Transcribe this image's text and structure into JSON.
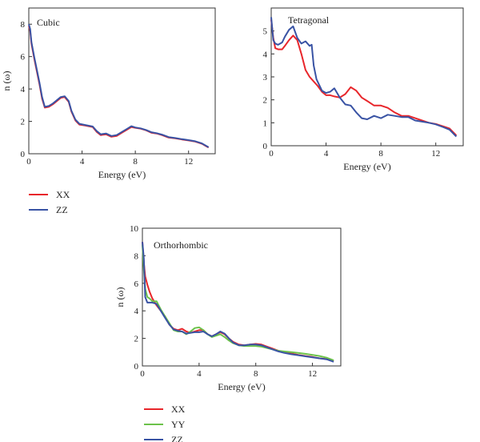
{
  "colors": {
    "XX": "#e8262b",
    "YY": "#6cc24a",
    "ZZ": "#3953a4"
  },
  "chart_data": [
    {
      "type": "line",
      "title": "Cubic",
      "xlabel": "Energy (eV)",
      "ylabel": "n (ω)",
      "xlim": [
        0,
        14
      ],
      "ylim": [
        0,
        9
      ],
      "xticks": [
        0,
        4,
        8,
        12
      ],
      "yticks": [
        0,
        2,
        4,
        6,
        8
      ],
      "grid": false,
      "legend": "below",
      "series": [
        {
          "name": "XX",
          "color": "#e8262b",
          "x": [
            0,
            0.1,
            0.2,
            0.4,
            0.6,
            0.8,
            1.0,
            1.2,
            1.5,
            1.8,
            2.1,
            2.4,
            2.7,
            3.0,
            3.2,
            3.5,
            3.8,
            4.2,
            4.8,
            5.1,
            5.4,
            5.8,
            6.2,
            6.6,
            7.0,
            7.4,
            7.7,
            8.0,
            8.4,
            8.8,
            9.2,
            9.6,
            10.0,
            10.5,
            11.0,
            11.5,
            12.0,
            12.5,
            13.0,
            13.5
          ],
          "y": [
            7.9,
            7.6,
            6.8,
            5.9,
            5.1,
            4.3,
            3.4,
            2.85,
            2.9,
            3.05,
            3.25,
            3.45,
            3.5,
            3.2,
            2.6,
            2.05,
            1.8,
            1.75,
            1.65,
            1.35,
            1.15,
            1.2,
            1.05,
            1.1,
            1.3,
            1.5,
            1.65,
            1.6,
            1.55,
            1.45,
            1.3,
            1.25,
            1.15,
            1.0,
            0.95,
            0.88,
            0.82,
            0.75,
            0.62,
            0.38
          ]
        },
        {
          "name": "ZZ",
          "color": "#3953a4",
          "x": [
            0,
            0.1,
            0.2,
            0.4,
            0.6,
            0.8,
            1.0,
            1.2,
            1.5,
            1.8,
            2.1,
            2.4,
            2.7,
            3.0,
            3.2,
            3.5,
            3.8,
            4.2,
            4.8,
            5.1,
            5.4,
            5.8,
            6.2,
            6.6,
            7.0,
            7.4,
            7.7,
            8.0,
            8.4,
            8.8,
            9.2,
            9.6,
            10.0,
            10.5,
            11.0,
            11.5,
            12.0,
            12.5,
            13.0,
            13.5
          ],
          "y": [
            8.0,
            7.7,
            6.9,
            6.0,
            5.2,
            4.4,
            3.5,
            2.9,
            2.95,
            3.1,
            3.3,
            3.5,
            3.55,
            3.25,
            2.65,
            2.1,
            1.85,
            1.78,
            1.68,
            1.4,
            1.2,
            1.25,
            1.1,
            1.15,
            1.35,
            1.55,
            1.7,
            1.62,
            1.57,
            1.47,
            1.33,
            1.27,
            1.18,
            1.03,
            0.97,
            0.9,
            0.84,
            0.77,
            0.64,
            0.4
          ]
        }
      ]
    },
    {
      "type": "line",
      "title": "Tetragonal",
      "xlabel": "Energy (eV)",
      "ylabel": "",
      "xlim": [
        0,
        14
      ],
      "ylim": [
        0,
        6
      ],
      "xticks": [
        0,
        4,
        8,
        12
      ],
      "yticks": [
        0,
        1,
        2,
        3,
        4,
        5
      ],
      "grid": false,
      "legend": "none",
      "series": [
        {
          "name": "XX",
          "color": "#e8262b",
          "x": [
            0,
            0.15,
            0.3,
            0.5,
            0.8,
            1.0,
            1.3,
            1.6,
            1.9,
            2.2,
            2.5,
            2.8,
            3.1,
            3.4,
            3.7,
            4.0,
            4.3,
            4.6,
            5.0,
            5.4,
            5.8,
            6.2,
            6.6,
            7.0,
            7.5,
            8.0,
            8.5,
            9.0,
            9.5,
            10.0,
            10.5,
            11.0,
            11.5,
            12.0,
            12.5,
            13.0,
            13.5
          ],
          "y": [
            5.5,
            4.7,
            4.25,
            4.2,
            4.2,
            4.35,
            4.6,
            4.8,
            4.6,
            4.0,
            3.3,
            3.0,
            2.8,
            2.6,
            2.35,
            2.2,
            2.2,
            2.15,
            2.1,
            2.25,
            2.55,
            2.4,
            2.1,
            1.95,
            1.75,
            1.75,
            1.65,
            1.45,
            1.3,
            1.3,
            1.2,
            1.1,
            1.0,
            0.95,
            0.85,
            0.75,
            0.45
          ]
        },
        {
          "name": "ZZ",
          "color": "#3953a4",
          "x": [
            0,
            0.15,
            0.3,
            0.5,
            0.8,
            1.0,
            1.3,
            1.6,
            1.9,
            2.2,
            2.5,
            2.8,
            2.95,
            3.1,
            3.3,
            3.7,
            4.0,
            4.3,
            4.6,
            5.0,
            5.4,
            5.8,
            6.2,
            6.6,
            7.0,
            7.5,
            8.0,
            8.5,
            9.0,
            9.5,
            10.0,
            10.5,
            11.0,
            11.5,
            12.0,
            12.5,
            13.0,
            13.5
          ],
          "y": [
            5.6,
            4.6,
            4.45,
            4.4,
            4.5,
            4.75,
            5.05,
            5.2,
            4.7,
            4.45,
            4.55,
            4.35,
            4.4,
            3.5,
            2.9,
            2.4,
            2.3,
            2.35,
            2.5,
            2.1,
            1.8,
            1.75,
            1.45,
            1.2,
            1.15,
            1.3,
            1.2,
            1.35,
            1.3,
            1.25,
            1.25,
            1.1,
            1.05,
            1.0,
            0.93,
            0.82,
            0.7,
            0.4
          ]
        }
      ]
    },
    {
      "type": "line",
      "title": "Orthorhombic",
      "xlabel": "Energy (eV)",
      "ylabel": "n (ω)",
      "xlim": [
        0,
        14
      ],
      "ylim": [
        0,
        10
      ],
      "xticks": [
        0,
        4,
        8,
        12
      ],
      "yticks": [
        0,
        2,
        4,
        6,
        8,
        10
      ],
      "grid": false,
      "legend": "below",
      "series": [
        {
          "name": "XX",
          "color": "#e8262b",
          "x": [
            0,
            0.1,
            0.2,
            0.35,
            0.5,
            0.7,
            1.0,
            1.3,
            1.6,
            1.9,
            2.2,
            2.5,
            2.8,
            3.1,
            3.4,
            3.7,
            4.0,
            4.3,
            4.6,
            4.9,
            5.2,
            5.5,
            5.8,
            6.1,
            6.4,
            6.8,
            7.2,
            7.6,
            8.0,
            8.4,
            8.8,
            9.2,
            9.6,
            10.0,
            10.5,
            11.0,
            11.5,
            12.0,
            12.5,
            13.0,
            13.5
          ],
          "y": [
            9.0,
            7.5,
            6.5,
            5.9,
            5.4,
            4.9,
            4.4,
            4.0,
            3.6,
            3.0,
            2.7,
            2.6,
            2.7,
            2.5,
            2.4,
            2.5,
            2.6,
            2.6,
            2.3,
            2.15,
            2.3,
            2.45,
            2.3,
            2.0,
            1.75,
            1.55,
            1.5,
            1.55,
            1.6,
            1.55,
            1.4,
            1.25,
            1.1,
            1.0,
            0.9,
            0.8,
            0.72,
            0.65,
            0.55,
            0.5,
            0.35
          ]
        },
        {
          "name": "YY",
          "color": "#6cc24a",
          "x": [
            0,
            0.1,
            0.2,
            0.35,
            0.5,
            0.7,
            1.0,
            1.3,
            1.6,
            1.9,
            2.2,
            2.5,
            2.8,
            3.1,
            3.4,
            3.7,
            4.0,
            4.3,
            4.6,
            4.9,
            5.2,
            5.5,
            5.8,
            6.1,
            6.4,
            6.8,
            7.2,
            7.6,
            8.0,
            8.4,
            8.8,
            9.2,
            9.6,
            10.0,
            10.5,
            11.0,
            11.5,
            12.0,
            12.5,
            13.0,
            13.5
          ],
          "y": [
            8.8,
            7.0,
            5.6,
            5.0,
            4.9,
            4.7,
            4.7,
            4.1,
            3.6,
            3.1,
            2.6,
            2.5,
            2.5,
            2.3,
            2.5,
            2.75,
            2.8,
            2.6,
            2.3,
            2.1,
            2.2,
            2.3,
            2.1,
            1.85,
            1.65,
            1.5,
            1.45,
            1.45,
            1.45,
            1.4,
            1.3,
            1.2,
            1.1,
            1.05,
            1.0,
            0.95,
            0.88,
            0.8,
            0.72,
            0.6,
            0.4
          ]
        },
        {
          "name": "ZZ",
          "color": "#3953a4",
          "x": [
            0,
            0.1,
            0.2,
            0.35,
            0.5,
            0.7,
            1.0,
            1.3,
            1.6,
            1.9,
            2.2,
            2.5,
            2.8,
            3.1,
            3.4,
            3.7,
            4.0,
            4.3,
            4.6,
            4.9,
            5.2,
            5.5,
            5.8,
            6.1,
            6.4,
            6.8,
            7.2,
            7.6,
            8.0,
            8.4,
            8.8,
            9.2,
            9.6,
            10.0,
            10.5,
            11.0,
            11.5,
            12.0,
            12.5,
            13.0,
            13.5
          ],
          "y": [
            9.0,
            7.8,
            5.0,
            4.6,
            4.6,
            4.6,
            4.5,
            4.0,
            3.5,
            3.0,
            2.65,
            2.55,
            2.5,
            2.35,
            2.4,
            2.45,
            2.45,
            2.5,
            2.3,
            2.15,
            2.3,
            2.5,
            2.35,
            2.0,
            1.7,
            1.5,
            1.5,
            1.55,
            1.55,
            1.5,
            1.35,
            1.2,
            1.05,
            0.95,
            0.85,
            0.78,
            0.7,
            0.62,
            0.55,
            0.48,
            0.3
          ]
        }
      ]
    }
  ]
}
